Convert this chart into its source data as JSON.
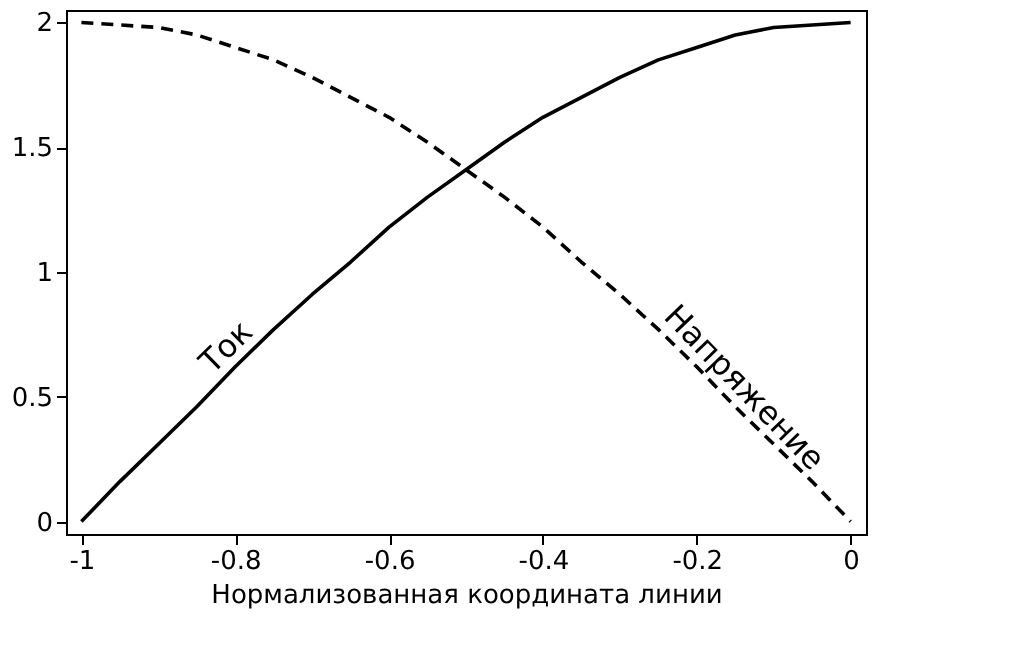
{
  "chart_data": {
    "type": "line",
    "xlabel": "Нормализованная координата линии",
    "x": [
      -1,
      -0.95,
      -0.9,
      -0.85,
      -0.8,
      -0.75,
      -0.7,
      -0.65,
      -0.6,
      -0.55,
      -0.5,
      -0.45,
      -0.4,
      -0.35,
      -0.3,
      -0.25,
      -0.2,
      -0.15,
      -0.1,
      -0.05,
      0
    ],
    "series": [
      {
        "name": "Ток",
        "color": "#000000",
        "line_style": "solid",
        "values": [
          0,
          0.16,
          0.31,
          0.46,
          0.62,
          0.77,
          0.91,
          1.04,
          1.18,
          1.3,
          1.41,
          1.52,
          1.62,
          1.7,
          1.78,
          1.85,
          1.9,
          1.95,
          1.98,
          1.99,
          2
        ]
      },
      {
        "name": "Напряжение",
        "color": "#000000",
        "line_style": "dashed",
        "values": [
          2,
          1.99,
          1.98,
          1.95,
          1.9,
          1.85,
          1.78,
          1.7,
          1.62,
          1.52,
          1.41,
          1.3,
          1.18,
          1.04,
          0.91,
          0.77,
          0.62,
          0.46,
          0.31,
          0.16,
          0
        ]
      }
    ],
    "xlim": [
      -1.02,
      0.02
    ],
    "xticks": [
      -1,
      -0.8,
      -0.6,
      -0.4,
      -0.2,
      0
    ],
    "ylim": [
      -0.05,
      2.05
    ],
    "yticks": [
      0,
      0.5,
      1,
      1.5,
      2
    ],
    "grid": false,
    "marker": "none"
  }
}
